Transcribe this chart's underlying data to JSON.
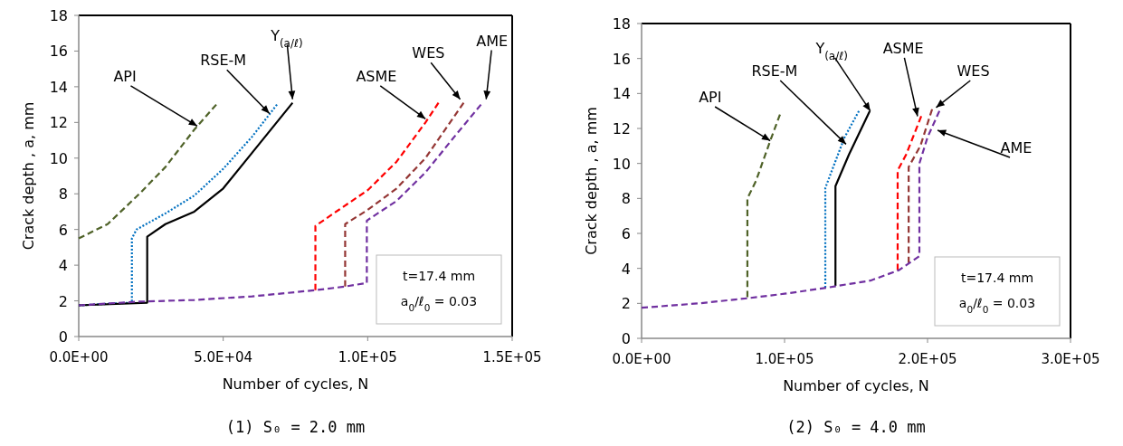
{
  "chart_data": [
    {
      "type": "line",
      "xlabel": "Number of cycles,  N",
      "ylabel": "Crack depth , a, mm",
      "xlim": [
        0,
        150000
      ],
      "ylim": [
        0,
        18
      ],
      "xticks": [
        {
          "value": 0,
          "label": "0.0E+00"
        },
        {
          "value": 50000,
          "label": "5.0E+04"
        },
        {
          "value": 100000,
          "label": "1.0E+05"
        },
        {
          "value": 150000,
          "label": "1.5E+05"
        }
      ],
      "yticks": [
        0,
        2,
        4,
        6,
        8,
        10,
        12,
        14,
        16,
        18
      ],
      "annotations": [
        "t=17.4 mm",
        "a$_{0}$/ℓ$_{0}$ = 0.03",
        "(1) S₀ = 2.0 mm"
      ],
      "series": [
        {
          "name": "API",
          "color": "#4f6228",
          "line_style": "dashed",
          "x": [
            0,
            10000,
            21000,
            30000,
            40000,
            47600
          ],
          "values": [
            5.5,
            6.3,
            8.0,
            9.5,
            11.6,
            13.0
          ]
        },
        {
          "name": "RSE-M",
          "color": "#0070c0",
          "line_style": "dotted",
          "x": [
            0,
            18400,
            18400,
            20000,
            30000,
            40000,
            50000,
            60000,
            68600
          ],
          "values": [
            1.75,
            1.9,
            5.5,
            6.0,
            6.9,
            7.9,
            9.4,
            11.2,
            13.0
          ]
        },
        {
          "name": "Y$_{(a/ℓ)}$",
          "color": "#000000",
          "line_style": "solid",
          "x": [
            0,
            23700,
            23700,
            30000,
            40000,
            50000,
            60000,
            74000
          ],
          "values": [
            1.75,
            1.9,
            5.6,
            6.3,
            7.0,
            8.3,
            10.3,
            13.1
          ]
        },
        {
          "name": "ASME",
          "color": "#ff0000",
          "line_style": "dashed",
          "x": [
            81900,
            81900,
            90000,
            100000,
            110000,
            120000,
            124500
          ],
          "values": [
            2.6,
            6.2,
            7.1,
            8.2,
            9.8,
            12.0,
            13.1
          ]
        },
        {
          "name": "WES",
          "color": "#943634",
          "line_style": "dashed",
          "x": [
            92200,
            92200,
            100000,
            110000,
            120000,
            133200
          ],
          "values": [
            2.8,
            6.3,
            7.1,
            8.3,
            10.0,
            13.1
          ]
        },
        {
          "name": "AME",
          "color": "#7030a0",
          "line_style": "dashed",
          "x": [
            0,
            20000,
            40000,
            60000,
            82000,
            92000,
            99700,
            99700,
            110000,
            120000,
            130000,
            139200
          ],
          "values": [
            1.75,
            1.95,
            2.05,
            2.25,
            2.6,
            2.8,
            3.0,
            6.5,
            7.6,
            9.2,
            11.2,
            13.0
          ]
        }
      ]
    },
    {
      "type": "line",
      "xlabel": "Number of cycles, N",
      "ylabel": "Crack depth , a, mm",
      "xlim": [
        0,
        300000
      ],
      "ylim": [
        0,
        18
      ],
      "xticks": [
        {
          "value": 0,
          "label": "0.0E+00"
        },
        {
          "value": 100000,
          "label": "1.0E+05"
        },
        {
          "value": 200000,
          "label": "2.0E+05"
        },
        {
          "value": 300000,
          "label": "3.0E+05"
        }
      ],
      "yticks": [
        0,
        2,
        4,
        6,
        8,
        10,
        12,
        14,
        16,
        18
      ],
      "annotations": [
        "t=17.4 mm",
        "a$_{0}$/ℓ$_{0}$ = 0.03",
        "(2) S₀ = 4.0 mm"
      ],
      "series": [
        {
          "name": "API",
          "color": "#4f6228",
          "line_style": "dashed",
          "x": [
            74000,
            74000,
            80000,
            90000,
            96800
          ],
          "values": [
            2.35,
            8.0,
            9.0,
            11.3,
            12.8
          ]
        },
        {
          "name": "RSE-M",
          "color": "#0070c0",
          "line_style": "dotted",
          "x": [
            128500,
            128500,
            135000,
            142000,
            152000
          ],
          "values": [
            2.9,
            8.6,
            10.0,
            11.5,
            13.0
          ]
        },
        {
          "name": "Y$_{(a/ℓ)}$",
          "color": "#000000",
          "line_style": "solid",
          "x": [
            135600,
            135600,
            145000,
            159600
          ],
          "values": [
            3.0,
            8.7,
            10.5,
            13.0
          ]
        },
        {
          "name": "ASME",
          "color": "#ff0000",
          "line_style": "dashed",
          "x": [
            179100,
            179100,
            185000,
            195600
          ],
          "values": [
            3.9,
            9.6,
            10.5,
            12.7
          ]
        },
        {
          "name": "WES",
          "color": "#943634",
          "line_style": "dashed",
          "x": [
            186800,
            186800,
            195000,
            203200
          ],
          "values": [
            4.3,
            9.8,
            11.0,
            13.1
          ]
        },
        {
          "name": "AME",
          "color": "#7030a0",
          "line_style": "dashed",
          "x": [
            0,
            40000,
            75000,
            100000,
            130000,
            137000,
            160000,
            180000,
            194300,
            194300,
            200000,
            208300
          ],
          "values": [
            1.75,
            2.0,
            2.3,
            2.55,
            2.9,
            3.0,
            3.3,
            3.9,
            4.7,
            10.0,
            11.5,
            13.0
          ]
        }
      ]
    }
  ]
}
